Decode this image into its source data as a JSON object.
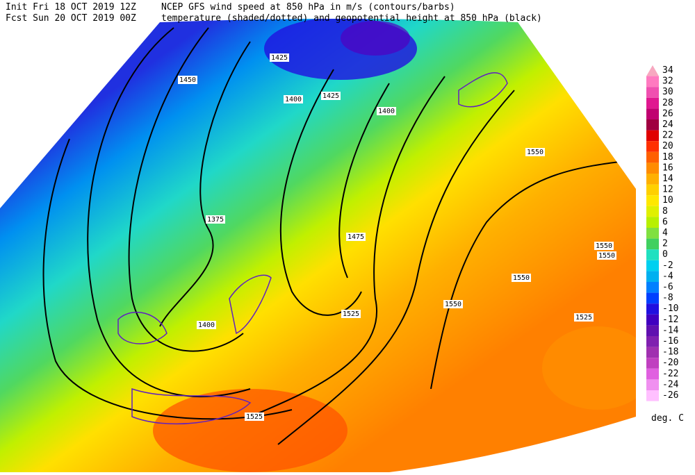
{
  "header": {
    "init": "Init  Fri 18 OCT 2019 12Z",
    "fcst": "Fcst Sun 20 OCT 2019 00Z",
    "title1": "NCEP GFS wind speed at 850 hPa in m/s (contours/barbs)",
    "title2": "temperature (shaded/dotted) and geopotential height at 850 hPa (black)"
  },
  "colorbar": {
    "levels": [
      34,
      32,
      30,
      28,
      26,
      24,
      22,
      20,
      18,
      16,
      14,
      12,
      10,
      8,
      6,
      4,
      2,
      0,
      -2,
      -4,
      -6,
      -8,
      -10,
      -12,
      -14,
      -16,
      -18,
      -20,
      -22,
      -24,
      -26
    ],
    "colors": [
      "#f7a8c0",
      "#ff7ac0",
      "#f050b0",
      "#e01890",
      "#c00070",
      "#a00040",
      "#e00000",
      "#ff3000",
      "#ff6000",
      "#ff8c00",
      "#ffb000",
      "#ffd000",
      "#ffe800",
      "#e0f000",
      "#b8f000",
      "#80e040",
      "#40d060",
      "#20e0c0",
      "#00d0f0",
      "#00b0f0",
      "#0080ff",
      "#0040ff",
      "#2010e0",
      "#4000c0",
      "#6010b0",
      "#8020b0",
      "#a030b0",
      "#c040c0",
      "#e060e0",
      "#f090f0",
      "#ffc0ff"
    ],
    "unit": "deg. C"
  },
  "height_labels": [
    "1425",
    "1450",
    "1400",
    "1425",
    "1400",
    "1375",
    "1475",
    "1550",
    "1550",
    "1550",
    "1550",
    "1550",
    "1525",
    "1525",
    "1525",
    "1400"
  ]
}
